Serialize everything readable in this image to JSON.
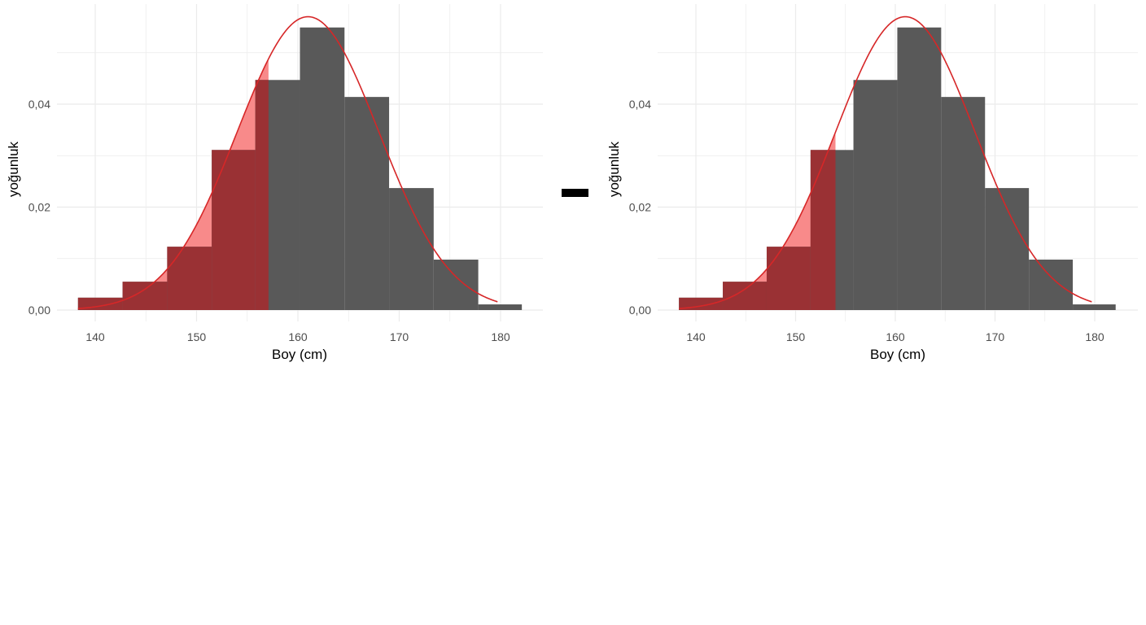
{
  "operator": "minus",
  "colors": {
    "bar": "#595959",
    "bar_shaded": "#9a3134",
    "area": "#f88a8a",
    "curve": "#d62728",
    "grid": "#ebebeb"
  },
  "chart_data": [
    {
      "type": "bar",
      "xlabel": "Boy (cm)",
      "ylabel": "yoğunluk",
      "xlim": [
        134.5,
        182.5
      ],
      "ylim": [
        0,
        0.06
      ],
      "xticks": [
        140,
        150,
        160,
        170,
        180
      ],
      "xtick_labels": [
        "140",
        "150",
        "160",
        "170",
        "180"
      ],
      "yticks": [
        0,
        0.02,
        0.04
      ],
      "ytick_labels": [
        "0,00",
        "0,02",
        "0,04"
      ],
      "bin_edges": [
        138.3,
        142.7,
        147.1,
        151.5,
        155.8,
        160.2,
        164.6,
        169.0,
        173.4,
        177.8,
        182.1
      ],
      "values": [
        0.0024,
        0.0055,
        0.0123,
        0.0311,
        0.0447,
        0.0549,
        0.0414,
        0.0237,
        0.0098,
        0.0011
      ],
      "normal_curve": {
        "mean": 161.0,
        "sd": 7.0,
        "from": 138.3,
        "to": 179.7
      },
      "shade_below": 157.1,
      "grid": true
    },
    {
      "type": "bar",
      "xlabel": "Boy (cm)",
      "ylabel": "yoğunluk",
      "xlim": [
        134.5,
        182.5
      ],
      "ylim": [
        0,
        0.06
      ],
      "xticks": [
        140,
        150,
        160,
        170,
        180
      ],
      "xtick_labels": [
        "140",
        "150",
        "160",
        "170",
        "180"
      ],
      "yticks": [
        0,
        0.02,
        0.04
      ],
      "ytick_labels": [
        "0,00",
        "0,02",
        "0,04"
      ],
      "bin_edges": [
        138.3,
        142.7,
        147.1,
        151.5,
        155.8,
        160.2,
        164.6,
        169.0,
        173.4,
        177.8,
        182.1
      ],
      "values": [
        0.0024,
        0.0055,
        0.0123,
        0.0311,
        0.0447,
        0.0549,
        0.0414,
        0.0237,
        0.0098,
        0.0011
      ],
      "normal_curve": {
        "mean": 161.0,
        "sd": 7.0,
        "from": 138.3,
        "to": 179.7
      },
      "shade_below": 154.0,
      "grid": true
    }
  ]
}
